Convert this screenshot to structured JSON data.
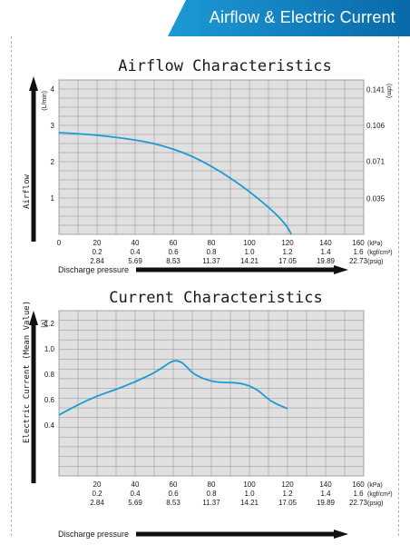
{
  "header": {
    "title": "Airflow & Electric Current",
    "accent": "#1d9ad6",
    "accent_dark": "#0a69a8"
  },
  "colors": {
    "curve": "#1e9ad6",
    "grid_bg": "#e0e0e0",
    "grid_line": "#8e8e8e",
    "arrow": "#111111"
  },
  "chart_data": [
    {
      "type": "line",
      "title": "Airflow Characteristics",
      "ylabel": "Airflow",
      "y_unit": "(L/min)",
      "y2_unit": "(cfm)",
      "xlabel": "Discharge pressure",
      "xlim": [
        0,
        160
      ],
      "ylim": [
        0,
        4.25
      ],
      "x_ticks": [
        "0",
        "20",
        "40",
        "60",
        "80",
        "100",
        "120",
        "140",
        "160"
      ],
      "x_ticks_kgf": [
        "0.2",
        "0.4",
        "0.6",
        "0.8",
        "1.0",
        "1.2",
        "1.4",
        "1.6"
      ],
      "x_ticks_psig": [
        "2.84",
        "5.69",
        "8.53",
        "11.37",
        "14.21",
        "17.05",
        "19.89",
        "22.73"
      ],
      "x_units": [
        "(kPa)",
        "(kgf/cm²)",
        "(psig)"
      ],
      "y_ticks": [
        "1",
        "2",
        "3",
        "4"
      ],
      "y2_ticks": [
        "0.035",
        "0.071",
        "0.106",
        "0.141"
      ],
      "grid": true,
      "series": [
        {
          "x": [
            0,
            10,
            20,
            30,
            40,
            50,
            60,
            70,
            80,
            90,
            100,
            110,
            116,
            120,
            122
          ],
          "y": [
            2.8,
            2.77,
            2.73,
            2.67,
            2.6,
            2.5,
            2.35,
            2.15,
            1.88,
            1.55,
            1.18,
            0.75,
            0.45,
            0.2,
            0.0
          ]
        }
      ]
    },
    {
      "type": "line",
      "title": "Current Characteristics",
      "ylabel": "Electric Current (Mean Value)",
      "y_unit": "[A]",
      "xlabel": "Discharge pressure",
      "xlim": [
        0,
        160
      ],
      "ylim": [
        0,
        1.3
      ],
      "x_ticks": [
        "20",
        "40",
        "60",
        "80",
        "100",
        "120",
        "140",
        "160"
      ],
      "x_ticks_kgf": [
        "0.2",
        "0.4",
        "0.6",
        "0.8",
        "1.0",
        "1.2",
        "1.4",
        "1.6"
      ],
      "x_ticks_psig": [
        "2.84",
        "5.69",
        "8.53",
        "11.37",
        "14.21",
        "17.05",
        "19.89",
        "22.73"
      ],
      "x_units": [
        "(kPa)",
        "(kgf/cm²)",
        "(psig)"
      ],
      "y_ticks": [
        "0.4",
        "0.6",
        "0.8",
        "1.0",
        "1.2"
      ],
      "grid": true,
      "series": [
        {
          "x": [
            0,
            10,
            20,
            30,
            40,
            50,
            55,
            60,
            64,
            67,
            70,
            75,
            80,
            85,
            90,
            95,
            100,
            105,
            110,
            115,
            120
          ],
          "y": [
            0.48,
            0.56,
            0.63,
            0.68,
            0.74,
            0.81,
            0.86,
            0.91,
            0.9,
            0.86,
            0.81,
            0.77,
            0.745,
            0.735,
            0.735,
            0.73,
            0.71,
            0.67,
            0.6,
            0.56,
            0.53
          ]
        }
      ]
    }
  ]
}
